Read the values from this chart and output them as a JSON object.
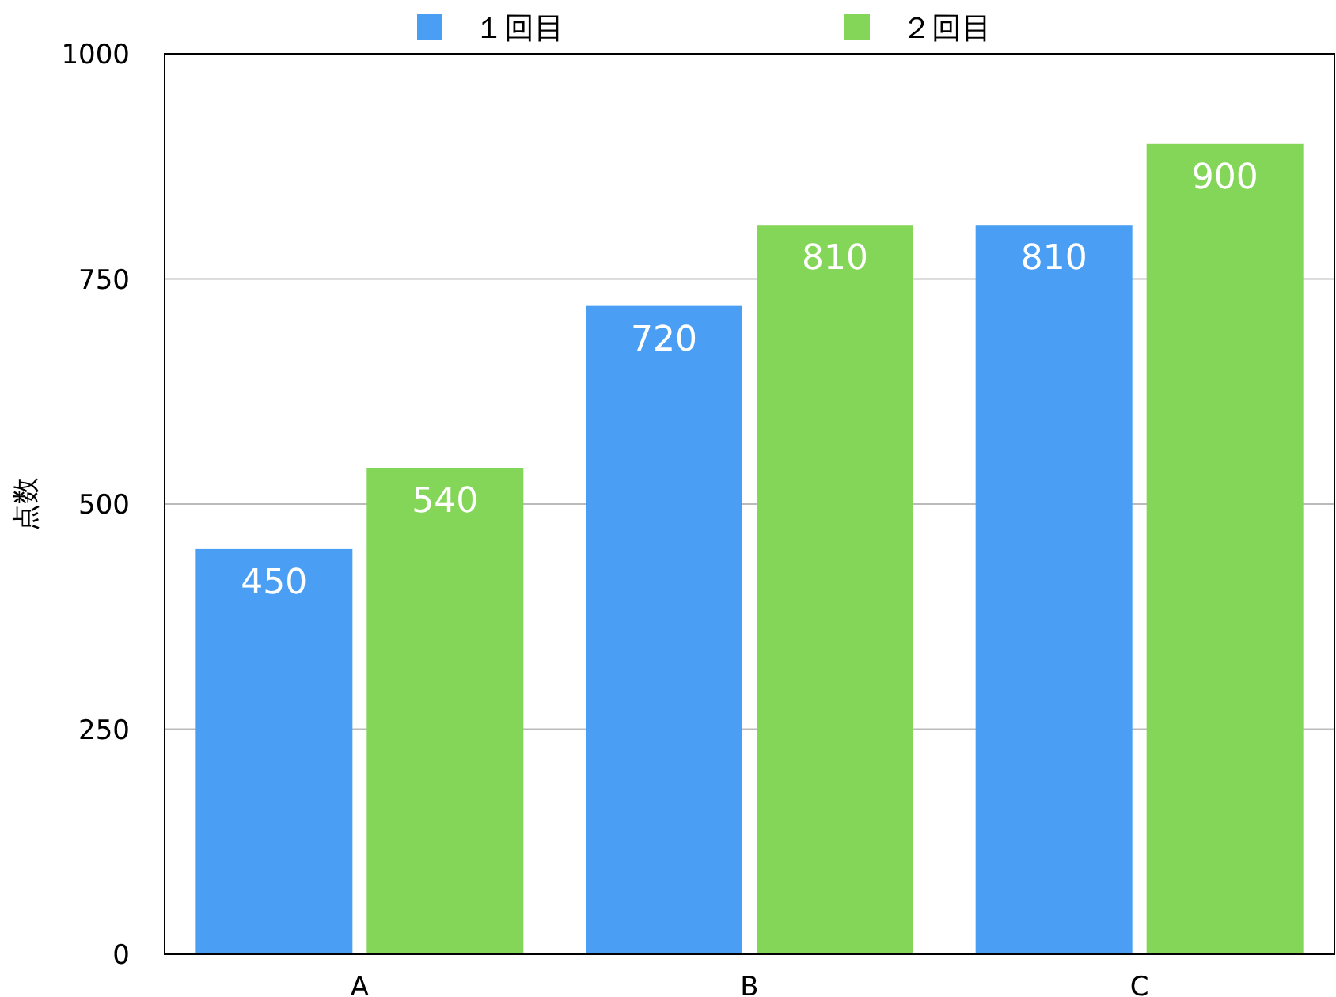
{
  "chart_data": {
    "type": "bar",
    "ylabel": "点数",
    "categories": [
      "A",
      "B",
      "C"
    ],
    "series": [
      {
        "name": "１回目",
        "color": "#4a9ff5",
        "values": [
          450,
          720,
          810
        ]
      },
      {
        "name": "２回目",
        "color": "#84d658",
        "values": [
          540,
          810,
          900
        ]
      }
    ],
    "ylim": [
      0,
      1000
    ],
    "yticks": [
      0,
      250,
      500,
      750,
      1000
    ],
    "grid": "y",
    "legend": "top",
    "data_labels": true
  }
}
